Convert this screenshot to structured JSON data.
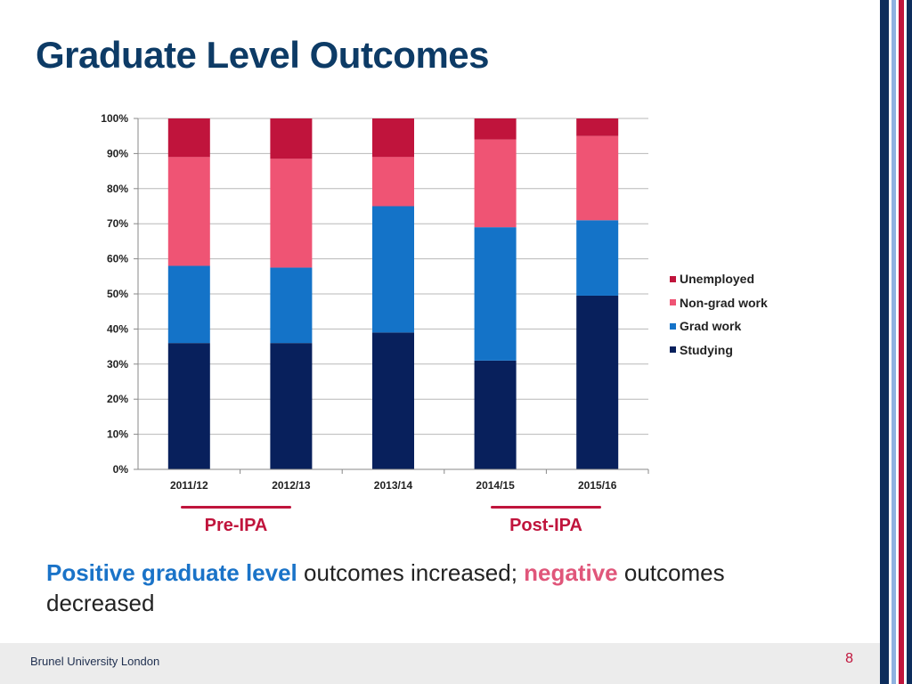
{
  "slide": {
    "title": "Graduate Level Outcomes",
    "footer_org": "Brunel University London",
    "page_number": "8"
  },
  "periods": [
    {
      "label": "Pre-IPA"
    },
    {
      "label": "Post-IPA"
    }
  ],
  "summary": {
    "positive": "Positive graduate level",
    "mid": " outcomes increased; ",
    "negative": "negative",
    "end": " outcomes decreased"
  },
  "colors": {
    "studying": "#08205c",
    "grad_work": "#1473c8",
    "non_grad_work": "#ef5474",
    "unemployed": "#c0143c",
    "title": "#0d3b66",
    "accent_red": "#c0143c"
  },
  "chart_data": {
    "type": "bar",
    "stacked": true,
    "categories": [
      "2011/12",
      "2012/13",
      "2013/14",
      "2014/15",
      "2015/16"
    ],
    "series": [
      {
        "name": "Studying",
        "values": [
          36,
          36,
          39,
          31,
          49.5
        ]
      },
      {
        "name": "Grad work",
        "values": [
          22,
          21.5,
          36,
          38,
          21.5
        ]
      },
      {
        "name": "Non-grad work",
        "values": [
          31,
          31,
          14,
          25,
          24
        ]
      },
      {
        "name": "Unemployed",
        "values": [
          11,
          11.5,
          11,
          6,
          5
        ]
      }
    ],
    "legend_order": [
      "Unemployed",
      "Non-grad work",
      "Grad work",
      "Studying"
    ],
    "yticks": [
      "0%",
      "10%",
      "20%",
      "30%",
      "40%",
      "50%",
      "60%",
      "70%",
      "80%",
      "90%",
      "100%"
    ],
    "ylim": [
      0,
      100
    ],
    "grid": true,
    "legend_position": "right"
  }
}
